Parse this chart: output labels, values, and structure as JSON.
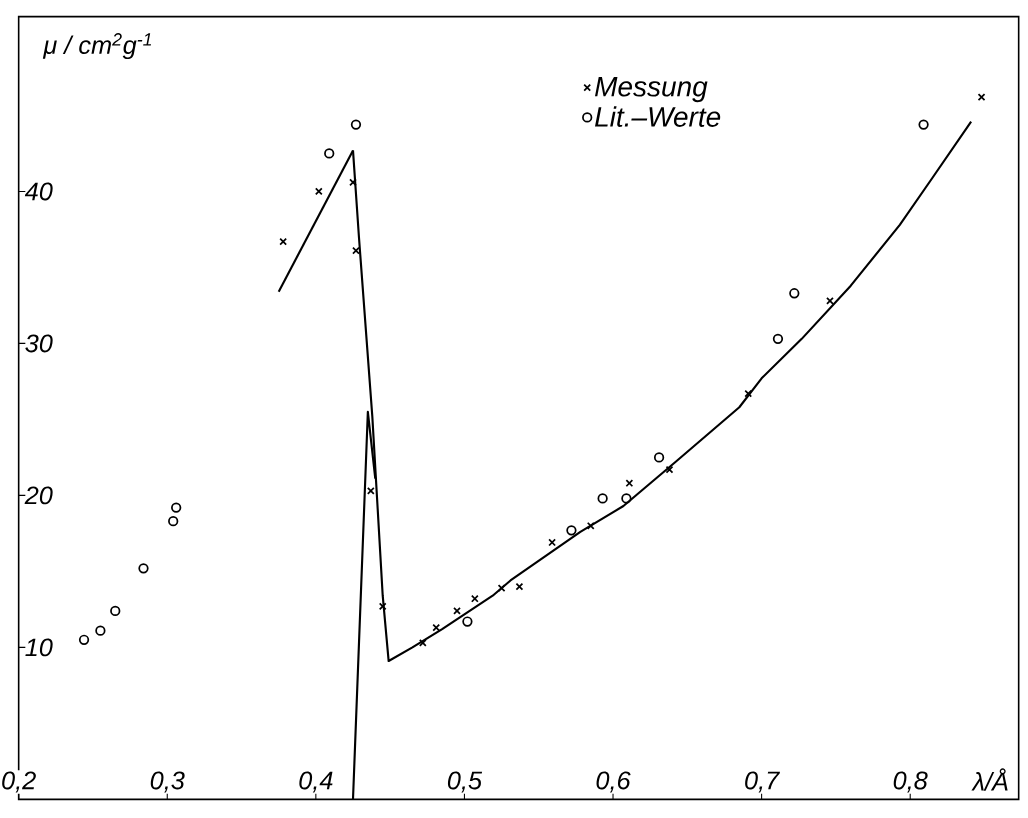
{
  "chart_data": {
    "type": "scatter",
    "xlabel": "λ/Å",
    "ylabel": "μ / cm$^{2}$g$^{-1}$",
    "xlim": [
      0.2,
      0.873
    ],
    "ylim": [
      0,
      51.5
    ],
    "xticks": [
      {
        "value": 0.2,
        "label": "0,2"
      },
      {
        "value": 0.3,
        "label": "0,3"
      },
      {
        "value": 0.4,
        "label": "0,4"
      },
      {
        "value": 0.5,
        "label": "0,5"
      },
      {
        "value": 0.6,
        "label": "0,6"
      },
      {
        "value": 0.7,
        "label": "0,7"
      },
      {
        "value": 0.8,
        "label": "0,8"
      }
    ],
    "yticks": [
      10,
      20,
      30,
      40
    ],
    "legend": "top",
    "series": [
      {
        "name": "Messung",
        "marker": "cross",
        "color": "#000000",
        "x": [
          0.378,
          0.402,
          0.425,
          0.427,
          0.437,
          0.445,
          0.472,
          0.481,
          0.495,
          0.507,
          0.525,
          0.537,
          0.559,
          0.585,
          0.611,
          0.638,
          0.691,
          0.746,
          0.848
        ],
        "values": [
          36.7,
          40.0,
          40.6,
          36.1,
          20.3,
          12.7,
          10.3,
          11.3,
          12.4,
          13.2,
          13.9,
          14.0,
          16.9,
          18.0,
          20.8,
          21.7,
          26.7,
          32.8,
          46.2
        ]
      },
      {
        "name": "Lit.–Werte",
        "marker": "circle",
        "color": "#000000",
        "x": [
          0.244,
          0.255,
          0.265,
          0.284,
          0.304,
          0.306,
          0.409,
          0.427,
          0.502,
          0.572,
          0.593,
          0.609,
          0.631,
          0.711,
          0.722,
          0.809
        ],
        "values": [
          10.5,
          11.1,
          12.4,
          15.2,
          18.3,
          19.2,
          42.5,
          44.4,
          11.7,
          17.7,
          19.8,
          19.8,
          22.5,
          30.3,
          33.3,
          44.4
        ]
      },
      {
        "type": "line",
        "marker": "none",
        "color": "#000000",
        "x": [
          0.375,
          0.425
        ],
        "values": [
          33.4,
          42.7
        ]
      },
      {
        "type": "line",
        "marker": "none",
        "color": "#000000",
        "x": [
          0.425,
          0.429,
          0.438,
          0.445,
          0.449,
          0.465,
          0.485,
          0.519,
          0.531,
          0.578,
          0.607,
          0.642,
          0.685,
          0.7,
          0.727,
          0.76,
          0.793,
          0.815,
          0.841
        ],
        "values": [
          42.7,
          37.0,
          25.2,
          13.4,
          9.1,
          10.0,
          11.2,
          13.4,
          14.4,
          17.6,
          19.3,
          22.2,
          25.8,
          27.7,
          30.3,
          33.8,
          37.8,
          40.9,
          44.6
        ]
      },
      {
        "type": "line",
        "marker": "none",
        "color": "#000000",
        "x": [
          0.425,
          0.435,
          0.44
        ],
        "values": [
          0,
          25.5,
          21.1
        ]
      }
    ]
  }
}
